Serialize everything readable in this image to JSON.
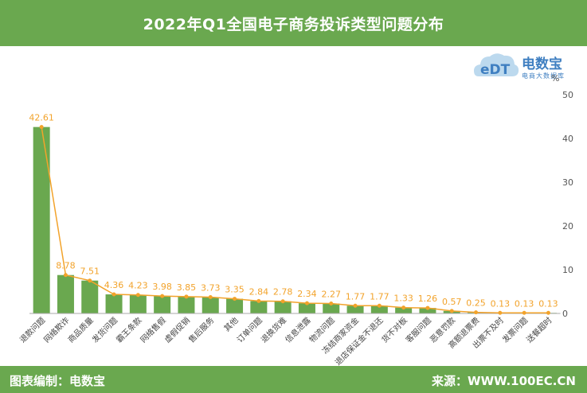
{
  "header": {
    "title": "2022年Q1全国电子商务投诉类型问题分布"
  },
  "logo": {
    "brand": "电数宝",
    "subtitle": "电商大数据库",
    "mark_text": "eDT"
  },
  "footer": {
    "left": "图表编制：电数宝",
    "right": "来源：WWW.100EC.CN"
  },
  "colors": {
    "header_bg": "#6aa84f",
    "bar": "#6aa84f",
    "line": "#f2a32b",
    "label": "#f2a32b"
  },
  "chart_data": {
    "type": "bar",
    "title": "2022年Q1全国电子商务投诉类型问题分布",
    "ylabel": "%",
    "ylim": [
      0,
      50
    ],
    "yticks": [
      0,
      10,
      20,
      30,
      40,
      50
    ],
    "y_axis_side": "right",
    "grid": false,
    "categories": [
      "退款问题",
      "网络欺诈",
      "商品质量",
      "发货问题",
      "霸王条款",
      "网络售假",
      "虚假促销",
      "售后服务",
      "其他",
      "订单问题",
      "退换货难",
      "信息泄露",
      "物流问题",
      "冻结商家资金",
      "退店保证金不退还",
      "货不对板",
      "客服问题",
      "恶意罚款",
      "高额退票费",
      "出票不及时",
      "发票问题",
      "送餐超时"
    ],
    "series": [
      {
        "type": "bar",
        "values": [
          42.61,
          8.78,
          7.51,
          4.36,
          4.23,
          3.98,
          3.85,
          3.73,
          3.35,
          2.84,
          2.78,
          2.34,
          2.27,
          1.77,
          1.77,
          1.33,
          1.26,
          0.57,
          0.25,
          0.13,
          0.13,
          0.13
        ]
      },
      {
        "type": "line",
        "values": [
          42.61,
          8.78,
          7.51,
          4.36,
          4.23,
          3.98,
          3.85,
          3.73,
          3.35,
          2.84,
          2.78,
          2.34,
          2.27,
          1.77,
          1.77,
          1.33,
          1.26,
          0.57,
          0.25,
          0.13,
          0.13,
          0.13
        ]
      }
    ],
    "data_labels": [
      "42.61",
      "8.78",
      "7.51",
      "4.36",
      "4.23",
      "3.98",
      "3.85",
      "3.73",
      "3.35",
      "2.84",
      "2.78",
      "2.34",
      "2.27",
      "1.77",
      "1.77",
      "1.33",
      "1.26",
      "0.57",
      "0.25",
      "0.13",
      "0.13",
      "0.13"
    ]
  }
}
